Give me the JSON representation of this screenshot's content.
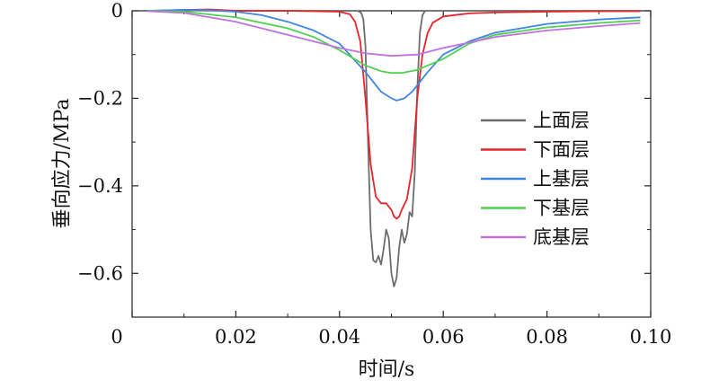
{
  "chart_data": {
    "type": "line",
    "title": "",
    "xlabel": "时间/s",
    "ylabel": "垂向应力/MPa",
    "xlim": [
      0,
      0.1
    ],
    "ylim": [
      -0.7,
      0
    ],
    "grid": false,
    "legend_position": "right",
    "x_ticks": [
      0,
      0.02,
      0.04,
      0.06,
      0.08,
      0.1
    ],
    "x_tick_labels": [
      "0",
      "0.02",
      "0.04",
      "0.06",
      "0.08",
      "0.10"
    ],
    "y_ticks": [
      0,
      -0.2,
      -0.4,
      -0.6
    ],
    "y_tick_labels": [
      "0",
      "−0.2",
      "−0.4",
      "−0.6"
    ],
    "series": [
      {
        "name": "上面层",
        "color": "#6d6d6d",
        "points": [
          [
            0.003,
            0
          ],
          [
            0.01,
            0.001
          ],
          [
            0.02,
            0
          ],
          [
            0.03,
            0
          ],
          [
            0.04,
            0
          ],
          [
            0.0435,
            0
          ],
          [
            0.0442,
            -0.005
          ],
          [
            0.0446,
            -0.02
          ],
          [
            0.045,
            -0.08
          ],
          [
            0.0455,
            -0.3
          ],
          [
            0.046,
            -0.5
          ],
          [
            0.0465,
            -0.57
          ],
          [
            0.047,
            -0.575
          ],
          [
            0.0475,
            -0.56
          ],
          [
            0.048,
            -0.58
          ],
          [
            0.0485,
            -0.545
          ],
          [
            0.049,
            -0.5
          ],
          [
            0.0495,
            -0.52
          ],
          [
            0.05,
            -0.6
          ],
          [
            0.0505,
            -0.63
          ],
          [
            0.051,
            -0.61
          ],
          [
            0.0515,
            -0.54
          ],
          [
            0.052,
            -0.5
          ],
          [
            0.0525,
            -0.53
          ],
          [
            0.053,
            -0.51
          ],
          [
            0.0535,
            -0.46
          ],
          [
            0.054,
            -0.47
          ],
          [
            0.0545,
            -0.37
          ],
          [
            0.055,
            -0.18
          ],
          [
            0.0555,
            -0.05
          ],
          [
            0.056,
            -0.01
          ],
          [
            0.0565,
            0
          ],
          [
            0.06,
            0
          ],
          [
            0.07,
            0
          ],
          [
            0.08,
            0
          ],
          [
            0.09,
            0
          ],
          [
            0.098,
            0
          ]
        ]
      },
      {
        "name": "下面层",
        "color": "#e8242a",
        "points": [
          [
            0.003,
            0
          ],
          [
            0.01,
            0.002
          ],
          [
            0.015,
            0.003
          ],
          [
            0.02,
            0
          ],
          [
            0.03,
            0
          ],
          [
            0.04,
            -0.002
          ],
          [
            0.042,
            -0.008
          ],
          [
            0.043,
            -0.025
          ],
          [
            0.044,
            -0.07
          ],
          [
            0.045,
            -0.2
          ],
          [
            0.046,
            -0.35
          ],
          [
            0.047,
            -0.425
          ],
          [
            0.048,
            -0.44
          ],
          [
            0.049,
            -0.44
          ],
          [
            0.05,
            -0.455
          ],
          [
            0.0505,
            -0.47
          ],
          [
            0.051,
            -0.475
          ],
          [
            0.0515,
            -0.47
          ],
          [
            0.052,
            -0.455
          ],
          [
            0.053,
            -0.43
          ],
          [
            0.054,
            -0.36
          ],
          [
            0.055,
            -0.2
          ],
          [
            0.056,
            -0.1
          ],
          [
            0.057,
            -0.05
          ],
          [
            0.058,
            -0.027
          ],
          [
            0.06,
            -0.013
          ],
          [
            0.065,
            -0.006
          ],
          [
            0.07,
            -0.004
          ],
          [
            0.08,
            -0.002
          ],
          [
            0.09,
            -0.001
          ],
          [
            0.098,
            -0.001
          ]
        ]
      },
      {
        "name": "上基层",
        "color": "#3f86e0",
        "points": [
          [
            0.003,
            0
          ],
          [
            0.01,
            0.002
          ],
          [
            0.015,
            0.001
          ],
          [
            0.02,
            -0.002
          ],
          [
            0.025,
            -0.01
          ],
          [
            0.03,
            -0.025
          ],
          [
            0.035,
            -0.045
          ],
          [
            0.04,
            -0.075
          ],
          [
            0.045,
            -0.14
          ],
          [
            0.048,
            -0.185
          ],
          [
            0.05,
            -0.2
          ],
          [
            0.051,
            -0.205
          ],
          [
            0.0525,
            -0.2
          ],
          [
            0.054,
            -0.185
          ],
          [
            0.057,
            -0.14
          ],
          [
            0.06,
            -0.1
          ],
          [
            0.065,
            -0.07
          ],
          [
            0.07,
            -0.05
          ],
          [
            0.08,
            -0.03
          ],
          [
            0.09,
            -0.02
          ],
          [
            0.098,
            -0.015
          ]
        ]
      },
      {
        "name": "下基层",
        "color": "#4fd14f",
        "points": [
          [
            0.003,
            0
          ],
          [
            0.01,
            -0.002
          ],
          [
            0.02,
            -0.015
          ],
          [
            0.03,
            -0.04
          ],
          [
            0.035,
            -0.06
          ],
          [
            0.04,
            -0.09
          ],
          [
            0.045,
            -0.125
          ],
          [
            0.048,
            -0.138
          ],
          [
            0.05,
            -0.142
          ],
          [
            0.052,
            -0.142
          ],
          [
            0.055,
            -0.135
          ],
          [
            0.06,
            -0.11
          ],
          [
            0.065,
            -0.075
          ],
          [
            0.07,
            -0.055
          ],
          [
            0.08,
            -0.038
          ],
          [
            0.09,
            -0.028
          ],
          [
            0.098,
            -0.022
          ]
        ]
      },
      {
        "name": "底基层",
        "color": "#c272de",
        "points": [
          [
            0.003,
            -0.001
          ],
          [
            0.01,
            -0.005
          ],
          [
            0.02,
            -0.025
          ],
          [
            0.03,
            -0.055
          ],
          [
            0.04,
            -0.085
          ],
          [
            0.045,
            -0.097
          ],
          [
            0.05,
            -0.103
          ],
          [
            0.055,
            -0.1
          ],
          [
            0.06,
            -0.085
          ],
          [
            0.07,
            -0.06
          ],
          [
            0.08,
            -0.045
          ],
          [
            0.09,
            -0.035
          ],
          [
            0.098,
            -0.028
          ]
        ]
      }
    ]
  }
}
